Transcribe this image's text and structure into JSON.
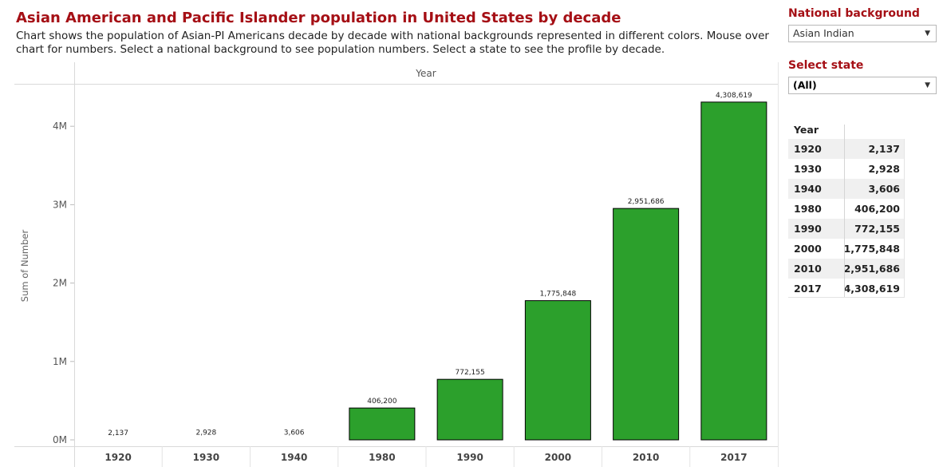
{
  "header": {
    "title": "Asian American and Pacific Islander population in United States by decade",
    "subtitle": "Chart shows the population of Asian-PI Americans decade by decade with national backgrounds represented in different colors. Mouse over chart for numbers. Select a national background to see population numbers. Select a state to see the profile by decade."
  },
  "filters": {
    "national_background": {
      "label": "National background",
      "selected": "Asian Indian"
    },
    "state": {
      "label": "Select state",
      "selected": "(All)"
    }
  },
  "table": {
    "header": "Year",
    "rows": [
      {
        "year": "1920",
        "value": "2,137"
      },
      {
        "year": "1930",
        "value": "2,928"
      },
      {
        "year": "1940",
        "value": "3,606"
      },
      {
        "year": "1980",
        "value": "406,200"
      },
      {
        "year": "1990",
        "value": "772,155"
      },
      {
        "year": "2000",
        "value": "1,775,848"
      },
      {
        "year": "2010",
        "value": "2,951,686"
      },
      {
        "year": "2017",
        "value": "4,308,619"
      }
    ]
  },
  "chart_data": {
    "type": "bar",
    "title": "",
    "xlabel": "Year",
    "ylabel": "Sum of Number",
    "categories": [
      "1920",
      "1930",
      "1940",
      "1980",
      "1990",
      "2000",
      "2010",
      "2017"
    ],
    "values": [
      2137,
      2928,
      3606,
      406200,
      772155,
      1775848,
      2951686,
      4308619
    ],
    "data_labels": [
      "2,137",
      "2,928",
      "3,606",
      "406,200",
      "772,155",
      "1,775,848",
      "2,951,686",
      "4,308,619"
    ],
    "y_ticks": [
      {
        "value": 0,
        "label": "0M"
      },
      {
        "value": 1000000,
        "label": "1M"
      },
      {
        "value": 2000000,
        "label": "2M"
      },
      {
        "value": 3000000,
        "label": "3M"
      },
      {
        "value": 4000000,
        "label": "4M"
      }
    ],
    "ylim": [
      0,
      4650000
    ],
    "grid": false,
    "legend": "none",
    "bar_color": "#2ca02c",
    "bar_border_color": "#000000"
  }
}
